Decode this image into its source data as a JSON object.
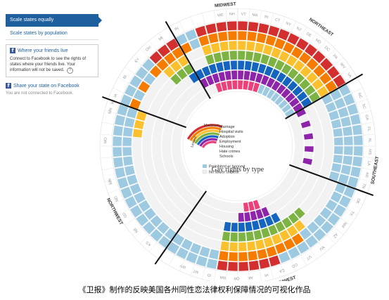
{
  "sidebar": {
    "scale_equal": "Scale states equally",
    "scale_population": "Scale states by population",
    "friends_title": "Where your friends live",
    "friends_text": "Connect to Facebook to see the rights of states where your friends live. Your information will not be saved.",
    "share_title": "Share your state on Facebook",
    "not_connected": "You are not connected to Facebook."
  },
  "chart": {
    "title": "Gay rights by type",
    "regions": [
      "MIDWEST",
      "NORTHEAST",
      "SOUTHEAST",
      "SOUTHWEST",
      "NORTHWEST"
    ],
    "legend": {
      "maximum": "Maximum",
      "limited": "Limited",
      "rights": [
        "Marriage",
        "Hospital visits",
        "Adoption",
        "Employment",
        "Housing",
        "Hate crimes",
        "Schools"
      ],
      "prohibited": "Prohibited or banned",
      "no_law": "No law or unclear"
    },
    "colors": {
      "marriage": "#d32f2f",
      "hospital": "#f57c00",
      "adoption": "#fbc02d",
      "employment": "#7cb342",
      "housing": "#1565c0",
      "hate": "#8e24aa",
      "schools": "#ec407a",
      "prohibited": "#9ecae1",
      "no_law": "#eeeeee"
    },
    "state_labels": [
      {
        "label": "MN",
        "a": -77
      },
      {
        "label": "WI",
        "a": -73
      },
      {
        "label": "IA",
        "a": -70
      },
      {
        "label": "MO",
        "a": -90
      },
      {
        "label": "BI",
        "a": -61
      },
      {
        "label": "KY",
        "a": -52
      },
      {
        "label": "OH",
        "a": -45
      },
      {
        "label": "MI",
        "a": -38
      },
      {
        "label": "IN",
        "a": -30
      },
      {
        "label": "ME",
        "a": -10
      },
      {
        "label": "NH",
        "a": -5
      },
      {
        "label": "VT",
        "a": 0
      },
      {
        "label": "MA",
        "a": 5
      },
      {
        "label": "RI",
        "a": 10
      },
      {
        "label": "CT",
        "a": 15
      },
      {
        "label": "NY",
        "a": 20
      },
      {
        "label": "NJ",
        "a": 25
      },
      {
        "label": "DE",
        "a": 30
      },
      {
        "label": "MD",
        "a": 35
      },
      {
        "label": "DC",
        "a": 40
      },
      {
        "label": "PA",
        "a": 45
      },
      {
        "label": "WV",
        "a": 50
      },
      {
        "label": "VA",
        "a": 55
      },
      {
        "label": "NC",
        "a": 65
      },
      {
        "label": "SC",
        "a": 70
      },
      {
        "label": "GA",
        "a": 75
      },
      {
        "label": "FL",
        "a": 80
      },
      {
        "label": "AL",
        "a": 85
      },
      {
        "label": "MS",
        "a": 90
      },
      {
        "label": "LA",
        "a": 95
      },
      {
        "label": "AR",
        "a": 100
      },
      {
        "label": "TN",
        "a": 105
      },
      {
        "label": "OK",
        "a": 112
      },
      {
        "label": "TX",
        "a": 118
      },
      {
        "label": "NM",
        "a": 124
      },
      {
        "label": "AZ",
        "a": 130
      },
      {
        "label": "NV",
        "a": 138
      },
      {
        "label": "UT",
        "a": 145
      },
      {
        "label": "CO",
        "a": 152
      },
      {
        "label": "CA",
        "a": 158
      },
      {
        "label": "HI",
        "a": 165
      },
      {
        "label": "AK",
        "a": 172
      },
      {
        "label": "OR",
        "a": 178
      },
      {
        "label": "WA",
        "a": 184
      },
      {
        "label": "ID",
        "a": 190
      },
      {
        "label": "MT",
        "a": 196
      },
      {
        "label": "WY",
        "a": 202
      },
      {
        "label": "KS",
        "a": 220
      },
      {
        "label": "NE",
        "a": 228
      },
      {
        "label": "SD",
        "a": 236
      },
      {
        "label": "ND",
        "a": 244
      },
      {
        "label": "MN",
        "a": 252
      }
    ]
  },
  "caption": "《卫报》制作的反映美国各州同性恋法律权利保障情况的可视化作品"
}
